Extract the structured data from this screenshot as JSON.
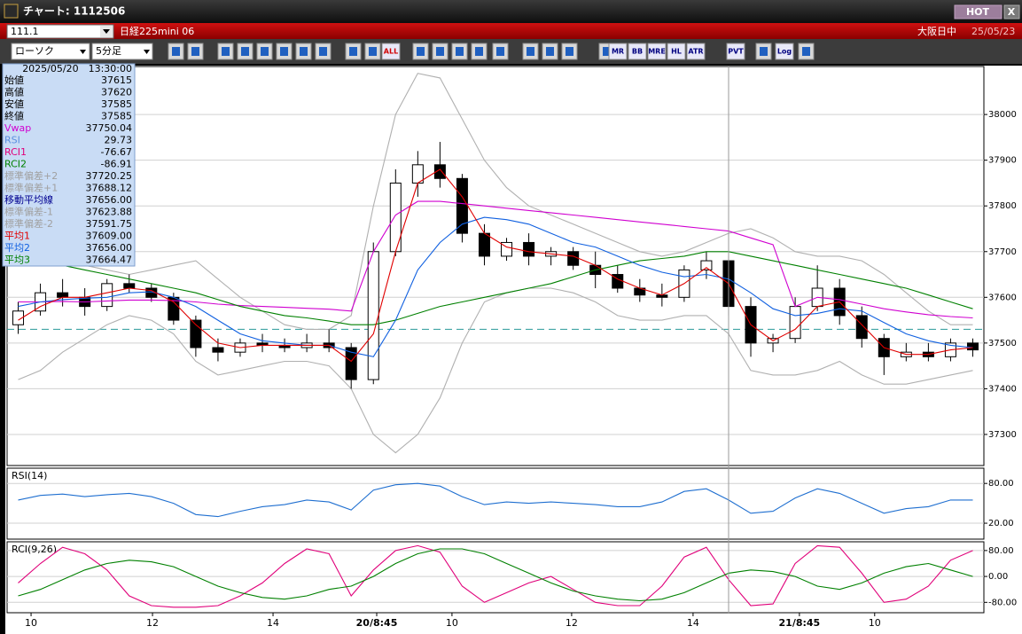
{
  "window": {
    "title": "チャート: 1112506",
    "hot": "HOT",
    "close": "X",
    "code": "111.1",
    "instrument": "日経225mini 06",
    "market": "大阪日中",
    "date": "25/05/23"
  },
  "toolbar": {
    "chart_type": "ローソク",
    "period": "5分足",
    "buttons": [
      "ALL",
      "MR",
      "BB",
      "MRE",
      "HL",
      "ATR",
      "PVT",
      "Log"
    ]
  },
  "info_box": {
    "datetime": "2025/05/20　13:30:00",
    "rows": [
      {
        "label": "始値",
        "value": "37615",
        "color": "#000000"
      },
      {
        "label": "高値",
        "value": "37620",
        "color": "#000000"
      },
      {
        "label": "安値",
        "value": "37585",
        "color": "#000000"
      },
      {
        "label": "終値",
        "value": "37585",
        "color": "#000000"
      },
      {
        "label": "Vwap",
        "value": "37750.04",
        "color": "#d000d0"
      },
      {
        "label": "RSI",
        "value": "29.73",
        "color": "#5a8ee0"
      },
      {
        "label": "RCI1",
        "value": "-76.67",
        "color": "#e0007a"
      },
      {
        "label": "RCI2",
        "value": "-86.91",
        "color": "#008000"
      },
      {
        "label": "標準偏差+2",
        "value": "37720.25",
        "color": "#a0a0a0"
      },
      {
        "label": "標準偏差+1",
        "value": "37688.12",
        "color": "#a0a0a0"
      },
      {
        "label": "移動平均線",
        "value": "37656.00",
        "color": "#000090"
      },
      {
        "label": "標準偏差-1",
        "value": "37623.88",
        "color": "#a0a0a0"
      },
      {
        "label": "標準偏差-2",
        "value": "37591.75",
        "color": "#a0a0a0"
      },
      {
        "label": "平均1",
        "value": "37609.00",
        "color": "#e00000"
      },
      {
        "label": "平均2",
        "value": "37656.00",
        "color": "#1060e0"
      },
      {
        "label": "平均3",
        "value": "37664.47",
        "color": "#008000"
      }
    ]
  },
  "chart_data": [
    {
      "type": "candlestick",
      "x": [
        0,
        1,
        2,
        3,
        4,
        5,
        6,
        7,
        8,
        9,
        10,
        11,
        12,
        13,
        14,
        15,
        16,
        17,
        18,
        19,
        20,
        21,
        22,
        23,
        24,
        25,
        26,
        27,
        28,
        29,
        30,
        31,
        32,
        33,
        34,
        35,
        36,
        37,
        38,
        39,
        40,
        41,
        42,
        43
      ],
      "open": [
        37540,
        37570,
        37610,
        37600,
        37580,
        37630,
        37620,
        37600,
        37550,
        37490,
        37480,
        37500,
        37495,
        37490,
        37500,
        37490,
        37420,
        37700,
        37850,
        37890,
        37860,
        37740,
        37690,
        37720,
        37690,
        37700,
        37670,
        37650,
        37620,
        37605,
        37600,
        37660,
        37680,
        37580,
        37500,
        37510,
        37580,
        37620,
        37560,
        37510,
        37470,
        37480,
        37470,
        37500
      ],
      "high": [
        37590,
        37630,
        37640,
        37620,
        37640,
        37650,
        37630,
        37610,
        37560,
        37510,
        37510,
        37520,
        37510,
        37520,
        37530,
        37500,
        37720,
        37880,
        37920,
        37940,
        37870,
        37760,
        37730,
        37740,
        37710,
        37710,
        37700,
        37670,
        37640,
        37630,
        37670,
        37700,
        37690,
        37600,
        37520,
        37600,
        37670,
        37640,
        37580,
        37520,
        37500,
        37500,
        37510,
        37510
      ],
      "low": [
        37520,
        37560,
        37580,
        37560,
        37570,
        37610,
        37590,
        37540,
        37470,
        37460,
        37470,
        37480,
        37480,
        37480,
        37480,
        37400,
        37410,
        37690,
        37820,
        37840,
        37720,
        37670,
        37680,
        37670,
        37670,
        37660,
        37620,
        37610,
        37590,
        37580,
        37590,
        37640,
        37560,
        37470,
        37480,
        37500,
        37570,
        37540,
        37490,
        37430,
        37460,
        37460,
        37460,
        37470
      ],
      "close": [
        37570,
        37610,
        37600,
        37580,
        37630,
        37620,
        37600,
        37550,
        37490,
        37480,
        37500,
        37495,
        37490,
        37500,
        37490,
        37420,
        37700,
        37850,
        37890,
        37860,
        37740,
        37690,
        37720,
        37690,
        37700,
        37670,
        37650,
        37620,
        37605,
        37600,
        37660,
        37680,
        37580,
        37500,
        37510,
        37580,
        37620,
        37560,
        37510,
        37470,
        37480,
        37470,
        37500,
        37485
      ],
      "up_color": "#ffffff",
      "down_color": "#000000",
      "series": [
        {
          "color": "#b0b0b0",
          "values": [
            37720,
            37720,
            37700,
            37670,
            37660,
            37650,
            37660,
            37670,
            37680,
            37640,
            37600,
            37570,
            37540,
            37530,
            37530,
            37560,
            37800,
            38000,
            38090,
            38080,
            37990,
            37900,
            37840,
            37800,
            37780,
            37760,
            37740,
            37720,
            37700,
            37690,
            37700,
            37720,
            37740,
            37750,
            37730,
            37700,
            37690,
            37690,
            37680,
            37650,
            37610,
            37570,
            37540,
            37540
          ]
        },
        {
          "color": "#b0b0b0",
          "values": [
            37420,
            37440,
            37480,
            37510,
            37540,
            37560,
            37550,
            37520,
            37460,
            37430,
            37440,
            37450,
            37460,
            37460,
            37450,
            37400,
            37300,
            37260,
            37300,
            37380,
            37500,
            37590,
            37610,
            37620,
            37620,
            37610,
            37590,
            37560,
            37550,
            37550,
            37560,
            37560,
            37520,
            37440,
            37430,
            37430,
            37440,
            37460,
            37430,
            37410,
            37410,
            37420,
            37430,
            37440
          ]
        },
        {
          "color": "#d000d0",
          "values": [
            37590,
            37590,
            37591,
            37590,
            37592,
            37594,
            37594,
            37593,
            37590,
            37585,
            37582,
            37580,
            37578,
            37576,
            37574,
            37570,
            37700,
            37780,
            37810,
            37810,
            37805,
            37800,
            37795,
            37790,
            37785,
            37780,
            37775,
            37770,
            37765,
            37760,
            37755,
            37750,
            37745,
            37730,
            37715,
            37580,
            37600,
            37595,
            37585,
            37575,
            37568,
            37562,
            37558,
            37555
          ]
        },
        {
          "color": "#008000",
          "values": [
            37690,
            37680,
            37670,
            37660,
            37650,
            37640,
            37630,
            37620,
            37610,
            37595,
            37580,
            37570,
            37560,
            37555,
            37548,
            37540,
            37540,
            37550,
            37565,
            37580,
            37590,
            37600,
            37610,
            37620,
            37630,
            37645,
            37660,
            37670,
            37680,
            37685,
            37690,
            37700,
            37700,
            37690,
            37680,
            37670,
            37660,
            37650,
            37640,
            37630,
            37620,
            37605,
            37590,
            37575
          ]
        },
        {
          "color": "#1060e0",
          "values": [
            37580,
            37590,
            37595,
            37598,
            37600,
            37610,
            37612,
            37600,
            37580,
            37550,
            37520,
            37505,
            37500,
            37495,
            37495,
            37480,
            37470,
            37550,
            37660,
            37720,
            37760,
            37775,
            37770,
            37760,
            37740,
            37720,
            37710,
            37690,
            37670,
            37655,
            37645,
            37650,
            37640,
            37610,
            37575,
            37560,
            37565,
            37575,
            37570,
            37545,
            37520,
            37505,
            37495,
            37490
          ]
        },
        {
          "color": "#e00000",
          "values": [
            37550,
            37580,
            37600,
            37600,
            37610,
            37620,
            37615,
            37590,
            37540,
            37500,
            37490,
            37495,
            37495,
            37495,
            37495,
            37460,
            37520,
            37700,
            37850,
            37880,
            37820,
            37740,
            37710,
            37700,
            37695,
            37690,
            37670,
            37640,
            37620,
            37605,
            37630,
            37665,
            37630,
            37540,
            37505,
            37530,
            37580,
            37590,
            37540,
            37490,
            37475,
            37475,
            37485,
            37490
          ]
        }
      ],
      "reference_line": 37530,
      "xlim": [
        -0.5,
        43.5
      ],
      "ylim": [
        37232,
        38105
      ],
      "yticks": [
        37300,
        37400,
        37500,
        37600,
        37700,
        37800,
        37900,
        38000
      ],
      "grid": true
    },
    {
      "type": "line",
      "label": "RSI(14)",
      "x": [
        0,
        1,
        2,
        3,
        4,
        5,
        6,
        7,
        8,
        9,
        10,
        11,
        12,
        13,
        14,
        15,
        16,
        17,
        18,
        19,
        20,
        21,
        22,
        23,
        24,
        25,
        26,
        27,
        28,
        29,
        30,
        31,
        32,
        33,
        34,
        35,
        36,
        37,
        38,
        39,
        40,
        41,
        42,
        43
      ],
      "series": [
        {
          "color": "#1f6fd0",
          "values": [
            55,
            62,
            64,
            60,
            63,
            65,
            60,
            50,
            33,
            30,
            38,
            45,
            48,
            55,
            52,
            40,
            70,
            78,
            80,
            76,
            60,
            48,
            52,
            50,
            52,
            50,
            48,
            45,
            45,
            52,
            68,
            72,
            55,
            35,
            38,
            58,
            72,
            65,
            50,
            35,
            42,
            45,
            55,
            55
          ]
        }
      ],
      "xlim": [
        -0.5,
        43.5
      ],
      "ylim": [
        -4,
        103
      ],
      "yticks": [
        {
          "value": 80,
          "label": "80.00"
        },
        {
          "value": 20,
          "label": "20.00"
        }
      ],
      "grid": true
    },
    {
      "type": "line",
      "label": "RCI(9,26)",
      "x": [
        0,
        1,
        2,
        3,
        4,
        5,
        6,
        7,
        8,
        9,
        10,
        11,
        12,
        13,
        14,
        15,
        16,
        17,
        18,
        19,
        20,
        21,
        22,
        23,
        24,
        25,
        26,
        27,
        28,
        29,
        30,
        31,
        32,
        33,
        34,
        35,
        36,
        37,
        38,
        39,
        40,
        41,
        42,
        43
      ],
      "series": [
        {
          "color": "#e0007a",
          "values": [
            -20,
            40,
            90,
            70,
            20,
            -60,
            -90,
            -95,
            -95,
            -90,
            -60,
            -20,
            40,
            85,
            70,
            -60,
            20,
            80,
            95,
            75,
            -30,
            -80,
            -50,
            -20,
            0,
            -40,
            -80,
            -90,
            -90,
            -30,
            60,
            90,
            -10,
            -90,
            -85,
            40,
            95,
            90,
            10,
            -80,
            -70,
            -30,
            50,
            80
          ]
        },
        {
          "color": "#008000",
          "values": [
            -60,
            -40,
            -10,
            20,
            40,
            50,
            45,
            30,
            0,
            -30,
            -50,
            -65,
            -70,
            -60,
            -40,
            -30,
            0,
            40,
            70,
            85,
            85,
            70,
            40,
            10,
            -20,
            -45,
            -60,
            -70,
            -75,
            -70,
            -50,
            -20,
            10,
            20,
            15,
            0,
            -30,
            -40,
            -20,
            10,
            30,
            40,
            20,
            0
          ]
        }
      ],
      "xlim": [
        -0.5,
        43.5
      ],
      "ylim": [
        -112,
        107
      ],
      "yticks": [
        {
          "value": 80,
          "label": "80.00"
        },
        {
          "value": 0,
          "label": "0.00"
        },
        {
          "value": -80,
          "label": "-80.00"
        }
      ],
      "grid": true,
      "xticks": [
        {
          "value": 0.58,
          "label": "10"
        },
        {
          "value": 6.05,
          "label": "12"
        },
        {
          "value": 11.48,
          "label": "14"
        },
        {
          "value": 16.15,
          "label": "20/8:45"
        },
        {
          "value": 19.54,
          "label": "10"
        },
        {
          "value": 24.93,
          "label": "12"
        },
        {
          "value": 30.4,
          "label": "14"
        },
        {
          "value": 35.19,
          "label": "21/8:45"
        },
        {
          "value": 38.58,
          "label": "10"
        }
      ]
    }
  ]
}
